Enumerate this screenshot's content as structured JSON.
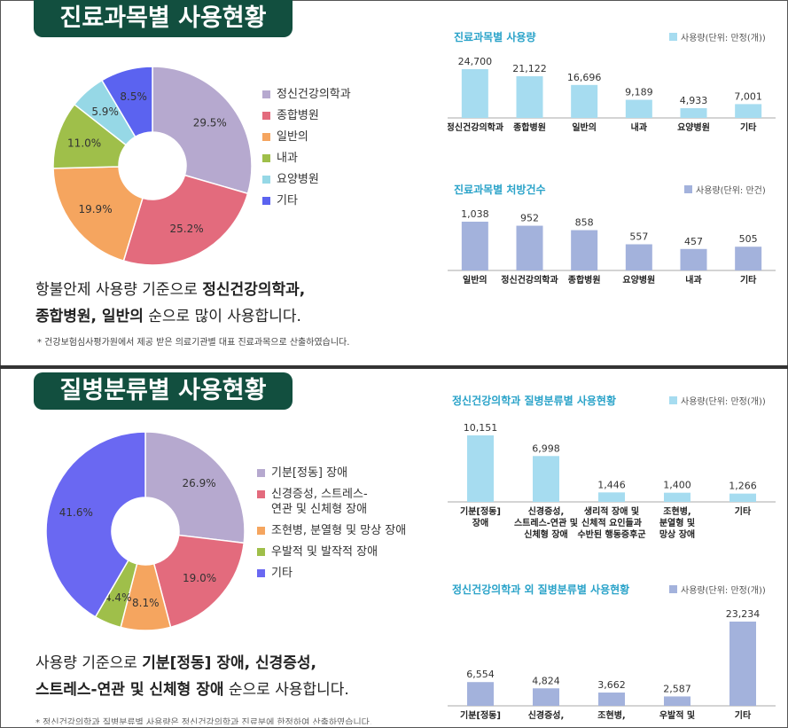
{
  "section1": {
    "title": "진료과목별 사용현황",
    "paragraph": {
      "line1_plain": "항불안제 사용량 기준으로 ",
      "line1_bold": "정신건강의학과,",
      "line2_bold": "종합병원, 일반의",
      "line2_plain": " 순으로 많이 사용합니다."
    },
    "note": "* 건강보험심사평가원에서 제공 받은 의료기관별 대표 진료과목으로 산출하였습니다."
  },
  "section2": {
    "title": "질병분류별 사용현황",
    "paragraph": {
      "line1_plain": "사용량 기준으로 ",
      "line1_bold": "기분[정동] 장애, 신경증성,",
      "line2_bold": "스트레스-연관 및 신체형 장애",
      "line2_plain": " 순으로 사용합니다."
    }
  },
  "chart_data": [
    {
      "id": "pie1",
      "type": "pie",
      "legend": [
        "정신건강의학과",
        "종합병원",
        "일반의",
        "내과",
        "요양병원",
        "기타"
      ],
      "values": [
        29.5,
        25.2,
        19.9,
        11.0,
        5.9,
        8.5
      ],
      "labels": [
        "29.5%",
        "25.2%",
        "19.9%",
        "11.0%",
        "5.9%",
        "8.5%"
      ],
      "colors": [
        "#b6a9cf",
        "#e36b7d",
        "#f5a55f",
        "#9fbf4a",
        "#96d8e6",
        "#5b63f0"
      ]
    },
    {
      "id": "bar1",
      "type": "bar",
      "title": "진료과목별 사용량",
      "unit": "사용량(단위: 만정(개))",
      "categories": [
        "정신건강의학과",
        "종합병원",
        "일반의",
        "내과",
        "요양병원",
        "기타"
      ],
      "values": [
        24700,
        21122,
        16696,
        9189,
        4933,
        7001
      ],
      "value_labels": [
        "24,700",
        "21,122",
        "16,696",
        "9,189",
        "4,933",
        "7,001"
      ],
      "color": "#a6dcf0"
    },
    {
      "id": "bar2",
      "type": "bar",
      "title": "진료과목별 처방건수",
      "unit": "사용량(단위: 만건)",
      "categories": [
        "일반의",
        "정신건강의학과",
        "종합병원",
        "요양병원",
        "내과",
        "기타"
      ],
      "values": [
        1038,
        952,
        858,
        557,
        457,
        505
      ],
      "value_labels": [
        "1,038",
        "952",
        "858",
        "557",
        "457",
        "505"
      ],
      "color": "#a3b2dc"
    },
    {
      "id": "pie2",
      "type": "pie",
      "legend": [
        "기분[정동] 장애",
        "신경증성, 스트레스-\n연관 및 신체형 장애",
        "조현병, 분열형 및 망상 장애",
        "우발적 및 발작적 장애",
        "기타"
      ],
      "values": [
        26.9,
        19.0,
        8.1,
        4.4,
        41.6
      ],
      "labels": [
        "26.9%",
        "19.0%",
        "8.1%",
        "4.4%",
        "41.6%"
      ],
      "colors": [
        "#b6a9cf",
        "#e36b7d",
        "#f5a55f",
        "#9fbf4a",
        "#6a68f2"
      ]
    },
    {
      "id": "bar3",
      "type": "bar",
      "title": "정신건강의학과 질병분류별 사용현황",
      "unit": "사용량(단위: 만정(개))",
      "categories": [
        "기분[정동]\n장애",
        "신경증성,\n스트레스-연관 및\n신체형 장애",
        "생리적 장애 및\n신체적 요인들과\n수반된 행동증후군",
        "조현병,\n분열형 및\n망상 장애",
        "기타"
      ],
      "values": [
        10151,
        6998,
        1446,
        1400,
        1266
      ],
      "value_labels": [
        "10,151",
        "6,998",
        "1,446",
        "1,400",
        "1,266"
      ],
      "color": "#a6dcf0"
    },
    {
      "id": "bar4",
      "type": "bar",
      "title": "정신건강의학과 외 질병분류별 사용현황",
      "unit": "사용량(단위: 만정(개))",
      "categories": [
        "기분[정동]",
        "신경증성,",
        "조현병,",
        "우발적 및",
        "기타"
      ],
      "values": [
        6554,
        4824,
        3662,
        2587,
        23234
      ],
      "value_labels": [
        "6,554",
        "4,824",
        "3,662",
        "2,587",
        "23,234"
      ],
      "color": "#a3b2dc"
    }
  ],
  "cut_text": "* 정신건강의학과 질병분류별 사용량은 정신건강의학과 진료분에 한정하여 산출하였습니다."
}
